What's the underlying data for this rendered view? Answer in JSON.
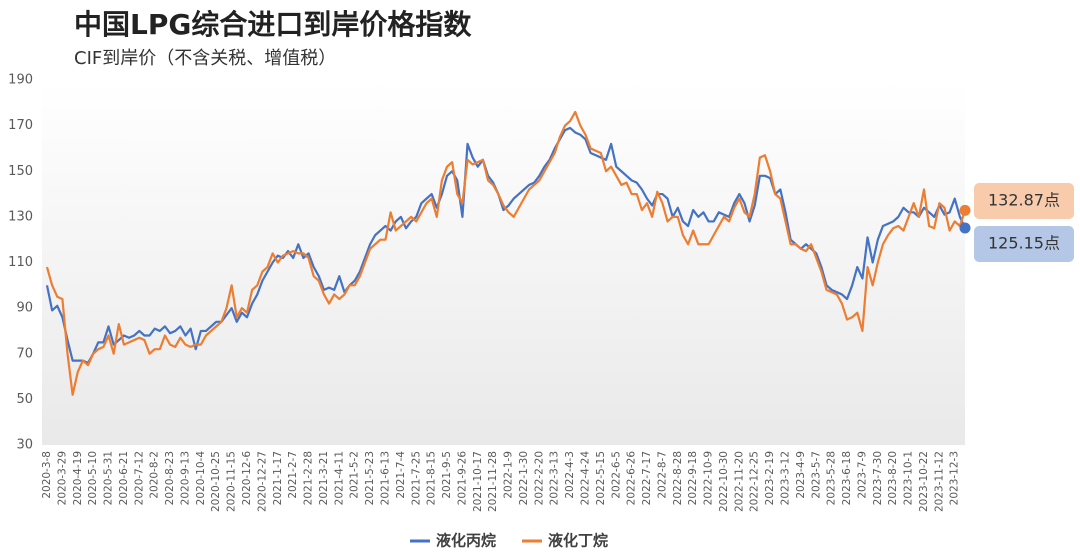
{
  "chart_data": {
    "type": "line",
    "title": "中国LPG综合进口到岸价格指数",
    "subtitle": "CIF到岸价（不含关税、增值税）",
    "categories": [
      "2020-3-8",
      null,
      null,
      "2020-3-29",
      null,
      null,
      "2020-4-19",
      null,
      null,
      "2020-5-10",
      null,
      null,
      "2020-5-31",
      null,
      null,
      "2020-6-21",
      null,
      null,
      "2020-7-12",
      null,
      null,
      "2020-8-2",
      null,
      null,
      "2020-8-23",
      null,
      null,
      "2020-9-13",
      null,
      null,
      "2020-10-4",
      null,
      null,
      "2020-10-25",
      null,
      null,
      "2020-11-15",
      null,
      null,
      "2020-12-6",
      null,
      null,
      "2020-12-27",
      null,
      null,
      "2021-1-17",
      null,
      null,
      "2021-2-7",
      null,
      null,
      "2021-2-28",
      null,
      null,
      "2021-3-21",
      null,
      null,
      "2021-4-11",
      null,
      null,
      "2021-5-2",
      null,
      null,
      "2021-5-23",
      null,
      null,
      "2021-6-13",
      null,
      null,
      "2021-7-4",
      null,
      null,
      "2021-7-25",
      null,
      null,
      "2021-8-15",
      null,
      null,
      "2021-9-5",
      null,
      null,
      "2021-9-26",
      null,
      null,
      "2021-10-17",
      null,
      null,
      "2021-11-28",
      null,
      null,
      "2022-1-9",
      null,
      null,
      "2022-1-30",
      null,
      null,
      "2022-2-20",
      null,
      null,
      "2022-3-13",
      null,
      null,
      "2022-4-3",
      null,
      null,
      "2022-4-24",
      null,
      null,
      "2022-5-15",
      null,
      null,
      "2022-6-5",
      null,
      null,
      "2022-6-26",
      null,
      null,
      "2022-7-17",
      null,
      null,
      "2022-8-7",
      null,
      null,
      "2022-8-28",
      null,
      null,
      "2022-9-18",
      null,
      null,
      "2022-10-9",
      null,
      null,
      "2022-10-30",
      null,
      null,
      "2022-11-20",
      null,
      null,
      "2022-12-25",
      null,
      null,
      "2023-2-19",
      null,
      null,
      "2023-3-12",
      null,
      null,
      "2023-4-9",
      null,
      null,
      "2023-5-7",
      null,
      null,
      "2023-5-28",
      null,
      null,
      "2023-6-18",
      null,
      null,
      "2023-7-9",
      null,
      null,
      "2023-7-30",
      null,
      null,
      "2023-8-20",
      null,
      null,
      "2023-10-1",
      null,
      null,
      "2023-10-22",
      null,
      null,
      "2023-11-12",
      null,
      null,
      "2023-12-3",
      null,
      null
    ],
    "series": [
      {
        "name": "液化丙烷",
        "color": "#4472c4",
        "values": [
          100,
          89,
          91,
          86,
          76,
          67,
          67,
          67,
          66,
          70,
          75,
          75,
          82,
          74,
          76,
          78,
          77,
          78,
          80,
          78,
          78,
          81,
          80,
          82,
          79,
          80,
          82,
          78,
          81,
          72,
          80,
          80,
          82,
          84,
          84,
          87,
          90,
          84,
          88,
          86,
          92,
          96,
          102,
          106,
          110,
          113,
          112,
          115,
          112,
          118,
          112,
          114,
          108,
          104,
          98,
          99,
          98,
          104,
          97,
          100,
          102,
          106,
          112,
          118,
          122,
          124,
          126,
          124,
          128,
          130,
          125,
          128,
          130,
          136,
          138,
          140,
          134,
          140,
          148,
          150,
          146,
          130,
          162,
          156,
          152,
          155,
          148,
          145,
          140,
          133,
          135,
          138,
          140,
          142,
          144,
          145,
          148,
          152,
          155,
          160,
          164,
          168,
          169,
          167,
          166,
          164,
          158,
          157,
          156,
          155,
          162,
          152,
          150,
          148,
          146,
          145,
          142,
          138,
          135,
          140,
          140,
          138,
          130,
          134,
          128,
          126,
          133,
          130,
          132,
          128,
          128,
          132,
          131,
          130,
          136,
          140,
          136,
          128,
          135,
          148,
          148,
          147,
          140,
          142,
          132,
          120,
          118,
          116,
          118,
          116,
          114,
          108,
          100,
          98,
          97,
          96,
          94,
          100,
          108,
          103,
          121,
          110,
          120,
          126,
          127,
          128,
          130,
          134,
          132,
          132,
          130,
          134,
          132,
          130,
          135,
          131,
          132,
          138,
          130,
          125.15
        ],
        "value_labels": [
          null,
          null,
          null,
          null,
          null,
          null,
          null,
          null,
          null,
          null,
          null,
          null,
          null,
          null,
          null,
          null,
          null,
          null,
          null,
          null,
          null,
          null,
          null,
          null,
          null,
          null,
          null,
          null,
          null,
          null,
          null,
          null,
          null,
          null,
          null,
          null,
          null,
          null,
          null,
          null,
          null,
          null,
          null,
          null,
          null,
          null,
          null,
          null,
          null,
          null,
          null,
          null,
          null,
          null,
          null,
          null,
          null,
          null,
          null,
          null,
          null,
          null,
          null,
          null,
          null,
          null,
          null,
          null,
          null,
          null,
          null,
          null,
          null,
          null,
          null,
          null,
          null,
          null,
          null,
          null,
          null,
          null,
          null,
          null,
          null,
          null,
          null,
          null,
          null,
          null,
          null,
          null,
          null,
          null,
          null,
          null,
          null,
          null,
          null,
          null,
          null,
          null,
          null,
          null,
          null,
          null,
          null,
          null,
          null,
          null,
          null,
          null,
          null,
          null,
          null,
          null,
          null,
          null,
          null,
          null,
          null,
          null,
          null,
          null,
          null,
          null,
          null,
          null,
          null,
          null,
          null,
          null,
          null,
          null,
          null,
          null,
          null,
          null,
          null,
          null,
          null,
          null,
          null,
          null,
          null,
          null,
          null,
          null,
          null,
          null,
          null,
          null,
          null,
          null,
          null,
          null,
          null,
          null,
          null,
          null,
          null,
          null,
          null,
          null,
          null,
          null,
          null,
          null,
          null,
          null,
          null,
          null,
          null,
          null,
          null,
          null,
          null,
          null,
          null,
          "125.15点"
        ]
      },
      {
        "name": "液化丁烷",
        "color": "#ed7d31",
        "values": [
          108,
          100,
          95,
          94,
          70,
          52,
          62,
          67,
          65,
          70,
          72,
          73,
          78,
          70,
          83,
          74,
          75,
          76,
          77,
          76,
          70,
          72,
          72,
          78,
          74,
          73,
          77,
          74,
          73,
          74,
          74,
          78,
          80,
          82,
          84,
          90,
          100,
          86,
          90,
          88,
          98,
          100,
          106,
          108,
          114,
          110,
          113,
          114,
          115,
          114,
          114,
          112,
          104,
          102,
          96,
          92,
          96,
          94,
          96,
          100,
          100,
          104,
          110,
          116,
          118,
          120,
          120,
          132,
          124,
          126,
          128,
          130,
          128,
          132,
          136,
          138,
          130,
          146,
          152,
          154,
          140,
          136,
          155,
          153,
          154,
          155,
          146,
          144,
          140,
          135,
          132,
          130,
          134,
          138,
          142,
          144,
          146,
          150,
          154,
          158,
          165,
          170,
          172,
          176,
          170,
          166,
          160,
          159,
          158,
          150,
          152,
          148,
          144,
          145,
          140,
          140,
          133,
          136,
          130,
          141,
          136,
          128,
          130,
          130,
          122,
          118,
          124,
          118,
          118,
          118,
          122,
          126,
          130,
          128,
          134,
          138,
          132,
          130,
          140,
          156,
          157,
          150,
          140,
          138,
          128,
          118,
          118,
          116,
          115,
          118,
          112,
          106,
          98,
          97,
          96,
          92,
          85,
          86,
          88,
          80,
          108,
          100,
          110,
          118,
          122,
          125,
          126,
          124,
          130,
          136,
          130,
          142,
          126,
          125,
          136,
          134,
          124,
          128,
          126,
          132.87
        ],
        "value_labels": [
          null,
          null,
          null,
          null,
          null,
          null,
          null,
          null,
          null,
          null,
          null,
          null,
          null,
          null,
          null,
          null,
          null,
          null,
          null,
          null,
          null,
          null,
          null,
          null,
          null,
          null,
          null,
          null,
          null,
          null,
          null,
          null,
          null,
          null,
          null,
          null,
          null,
          null,
          null,
          null,
          null,
          null,
          null,
          null,
          null,
          null,
          null,
          null,
          null,
          null,
          null,
          null,
          null,
          null,
          null,
          null,
          null,
          null,
          null,
          null,
          null,
          null,
          null,
          null,
          null,
          null,
          null,
          null,
          null,
          null,
          null,
          null,
          null,
          null,
          null,
          null,
          null,
          null,
          null,
          null,
          null,
          null,
          null,
          null,
          null,
          null,
          null,
          null,
          null,
          null,
          null,
          null,
          null,
          null,
          null,
          null,
          null,
          null,
          null,
          null,
          null,
          null,
          null,
          null,
          null,
          null,
          null,
          null,
          null,
          null,
          null,
          null,
          null,
          null,
          null,
          null,
          null,
          null,
          null,
          null,
          null,
          null,
          null,
          null,
          null,
          null,
          null,
          null,
          null,
          null,
          null,
          null,
          null,
          null,
          null,
          null,
          null,
          null,
          null,
          null,
          null,
          null,
          null,
          null,
          null,
          null,
          null,
          null,
          null,
          null,
          null,
          null,
          null,
          null,
          null,
          null,
          null,
          null,
          null,
          null,
          null,
          null,
          null,
          null,
          null,
          null,
          null,
          null,
          null,
          null,
          null,
          null,
          null,
          null,
          null,
          null,
          null,
          null,
          null,
          "132.87点"
        ]
      }
    ],
    "ylim": [
      30,
      190
    ],
    "yticks": [
      30,
      50,
      70,
      90,
      110,
      130,
      150,
      170,
      190
    ],
    "grid": false,
    "legend": "bottom"
  }
}
